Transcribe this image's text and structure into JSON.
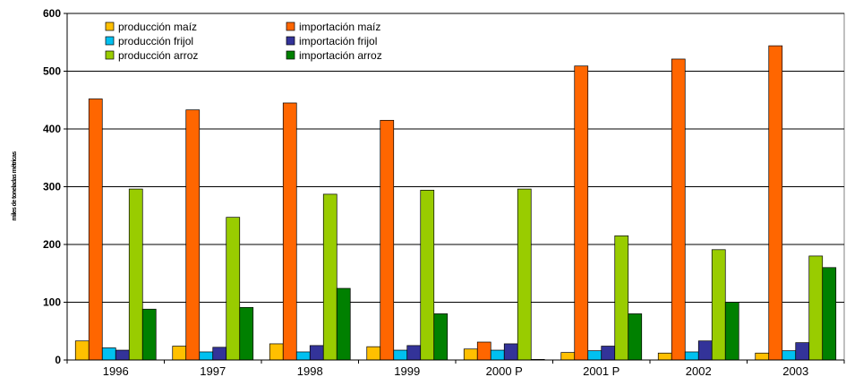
{
  "chart_data": {
    "type": "bar",
    "title": "",
    "xlabel": "",
    "ylabel": "miles de toneladas métricas",
    "ylim": [
      0,
      600
    ],
    "yticks": [
      0,
      100,
      200,
      300,
      400,
      500,
      600
    ],
    "grid": true,
    "legend_position": "top-left",
    "categories": [
      "1996",
      "1997",
      "1998",
      "1999",
      "2000 P",
      "2001 P",
      "2002",
      "2003"
    ],
    "series": [
      {
        "name": "producción maíz",
        "color": "#ffc000",
        "values": [
          33,
          24,
          28,
          23,
          19,
          13,
          12,
          12
        ]
      },
      {
        "name": "importación maíz",
        "color": "#ff6600",
        "values": [
          452,
          433,
          445,
          415,
          31,
          509,
          521,
          544
        ]
      },
      {
        "name": "producción frijol",
        "color": "#00c0f0",
        "values": [
          21,
          14,
          14,
          17,
          17,
          16,
          14,
          16
        ]
      },
      {
        "name": "importación frijol",
        "color": "#333399",
        "values": [
          17,
          22,
          25,
          25,
          28,
          24,
          33,
          30
        ]
      },
      {
        "name": "producción arroz",
        "color": "#99cc00",
        "values": [
          296,
          247,
          287,
          294,
          296,
          215,
          191,
          180
        ]
      },
      {
        "name": "importación arroz",
        "color": "#008000",
        "values": [
          88,
          91,
          124,
          80,
          1,
          80,
          100,
          160
        ]
      }
    ]
  }
}
